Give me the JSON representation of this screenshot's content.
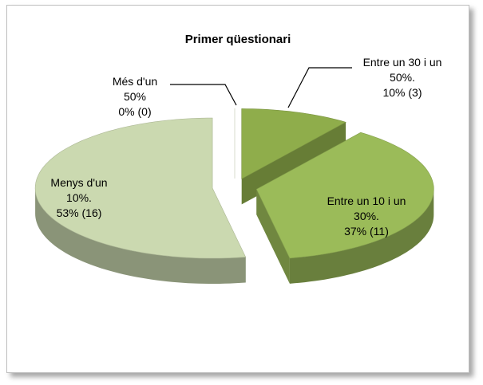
{
  "chart_data": {
    "type": "pie3d",
    "title": "Primer qüestionari",
    "categories": [
      "Entre un 30 i un 50%.",
      "Entre un 10 i un 30%.",
      "Menys d'un 10%.",
      "Més d'un 50%"
    ],
    "values": [
      10,
      37,
      53,
      0
    ],
    "value_labels": [
      "10% (3)",
      "37% (11)",
      "53% (16)",
      "0% (0)"
    ],
    "colors": [
      "#8fad4b",
      "#9bbb59",
      "#cbd9b0",
      "#dfe8cc"
    ]
  }
}
